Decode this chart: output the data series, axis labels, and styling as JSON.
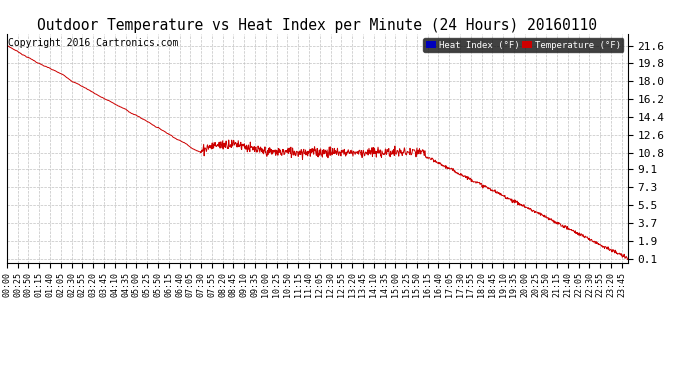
{
  "title": "Outdoor Temperature vs Heat Index per Minute (24 Hours) 20160110",
  "copyright": "Copyright 2016 Cartronics.com",
  "legend_labels": [
    "Heat Index (°F)",
    "Temperature (°F)"
  ],
  "legend_colors": [
    "#0000bb",
    "#cc0000"
  ],
  "yticks": [
    0.1,
    1.9,
    3.7,
    5.5,
    7.3,
    9.1,
    10.8,
    12.6,
    14.4,
    16.2,
    18.0,
    19.8,
    21.6
  ],
  "ymin": -0.3,
  "ymax": 22.8,
  "line_color": "#cc0000",
  "bg_color": "#ffffff",
  "grid_color": "#bbbbbb",
  "title_fontsize": 10.5,
  "copyright_fontsize": 7,
  "xtick_fontsize": 6,
  "ytick_fontsize": 8,
  "total_minutes": 1440
}
